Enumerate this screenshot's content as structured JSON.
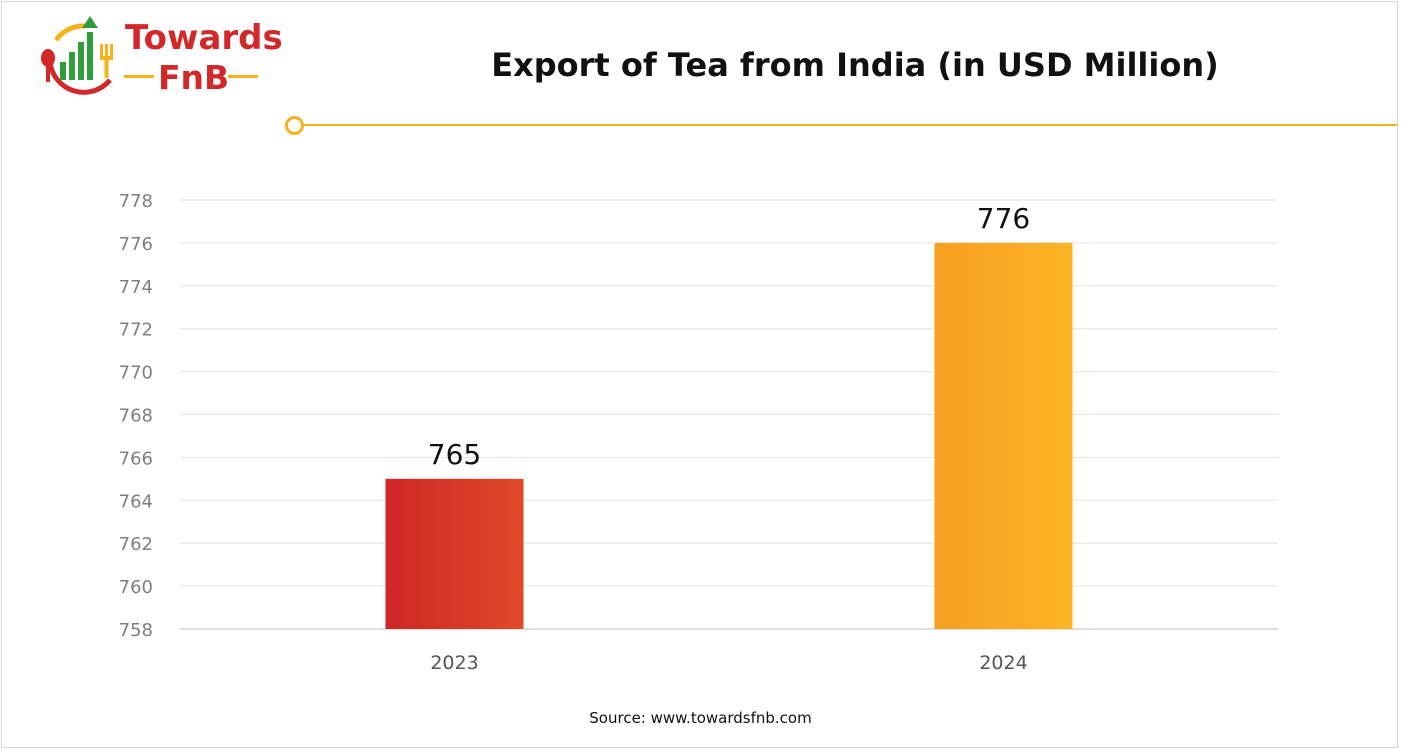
{
  "logo": {
    "line1": "Towards",
    "line2": "FnB",
    "colors": {
      "red": "#d3282a",
      "green": "#2f9e3a",
      "yellow": "#f5b21b"
    }
  },
  "source_text": "Source: www.towardsfnb.com",
  "chart_data": {
    "type": "bar",
    "title": "Export of Tea from India (in USD Million)",
    "xlabel": "",
    "ylabel": "",
    "categories": [
      "2023",
      "2024"
    ],
    "values": [
      765,
      776
    ],
    "data_labels": [
      "765",
      "776"
    ],
    "ylim": [
      758,
      778
    ],
    "yticks": [
      758,
      760,
      762,
      764,
      766,
      768,
      770,
      772,
      774,
      776,
      778
    ],
    "grid": true,
    "legend": "none",
    "bar_colors": [
      [
        "#cf2626",
        "#df4a28"
      ],
      [
        "#f5a020",
        "#fdb524"
      ]
    ]
  }
}
